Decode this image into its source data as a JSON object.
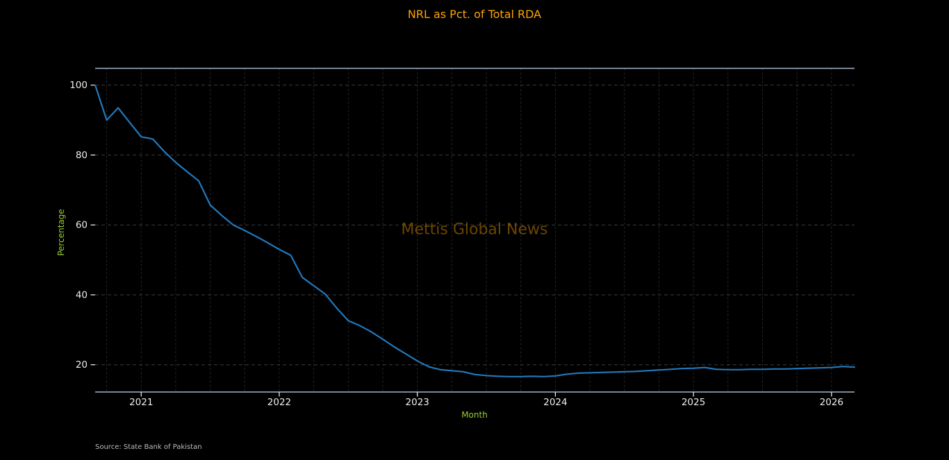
{
  "figure": {
    "title": "NRL as Pct. of Total RDA",
    "watermark": "Mettis Global News",
    "source": "Source: State Bank of Pakistan"
  },
  "chart_data": {
    "type": "line",
    "title": "NRL as Pct. of Total RDA",
    "xlabel": "Month",
    "ylabel": "Percentage",
    "x": [
      "2020-09",
      "2020-10",
      "2020-11",
      "2020-12",
      "2021-01",
      "2021-02",
      "2021-03",
      "2021-04",
      "2021-05",
      "2021-06",
      "2021-07",
      "2021-08",
      "2021-09",
      "2021-10",
      "2021-11",
      "2021-12",
      "2022-01",
      "2022-02",
      "2022-03",
      "2022-04",
      "2022-05",
      "2022-06",
      "2022-07",
      "2022-08",
      "2022-09",
      "2022-10",
      "2022-11",
      "2022-12",
      "2023-01",
      "2023-02",
      "2023-03",
      "2023-04",
      "2023-05",
      "2023-06",
      "2023-07",
      "2023-08",
      "2023-09",
      "2023-10",
      "2023-11",
      "2023-12",
      "2024-01",
      "2024-02",
      "2024-03",
      "2024-04",
      "2024-05",
      "2024-06",
      "2024-07",
      "2024-08",
      "2024-09",
      "2024-10",
      "2024-11",
      "2024-12",
      "2025-01",
      "2025-02",
      "2025-03",
      "2025-04",
      "2025-05",
      "2025-06",
      "2025-07",
      "2025-08",
      "2025-09",
      "2025-10",
      "2025-11",
      "2025-12",
      "2026-01",
      "2026-02",
      "2026-03"
    ],
    "series": [
      {
        "name": "NRL as Pct. of Total RDA",
        "values": [
          100.0,
          90.0,
          93.5,
          89.3,
          85.2,
          84.6,
          81.0,
          77.9,
          75.2,
          72.6,
          65.7,
          62.7,
          60.0,
          58.4,
          56.7,
          54.9,
          53.0,
          51.3,
          45.0,
          42.6,
          40.2,
          36.2,
          32.6,
          31.2,
          29.4,
          27.3,
          25.1,
          23.1,
          21.1,
          19.4,
          18.6,
          18.3,
          18.0,
          17.2,
          16.9,
          16.7,
          16.6,
          16.6,
          16.7,
          16.6,
          16.8,
          17.3,
          17.6,
          17.7,
          17.8,
          17.9,
          18.0,
          18.1,
          18.3,
          18.5,
          18.7,
          18.9,
          19.0,
          19.2,
          18.7,
          18.6,
          18.6,
          18.7,
          18.7,
          18.8,
          18.8,
          18.9,
          19.0,
          19.1,
          19.2,
          19.5,
          19.3
        ]
      }
    ],
    "yticks": [
      20,
      40,
      60,
      80,
      100
    ],
    "xtick_labels": [
      "2021",
      "2022",
      "2023",
      "2024",
      "2025",
      "2026"
    ],
    "xtick_month_indices": [
      4,
      16,
      28,
      40,
      52,
      64
    ],
    "ylim": [
      12.2,
      104.8
    ],
    "grid": true,
    "legend": "none",
    "watermark": "Mettis Global News",
    "source": "Source: State Bank of Pakistan",
    "colors": {
      "background": "#000000",
      "line": "#2279bd",
      "title": "#ffa500",
      "axis_label": "#9acd32",
      "tick_label": "#eeeeee",
      "spine": "#a7b6cc",
      "grid_vertical": "#26282c",
      "grid_horizontal": "#3a3d40",
      "watermark": "rgba(255,165,0,0.42)",
      "source_text": "#bdbdbd"
    }
  }
}
